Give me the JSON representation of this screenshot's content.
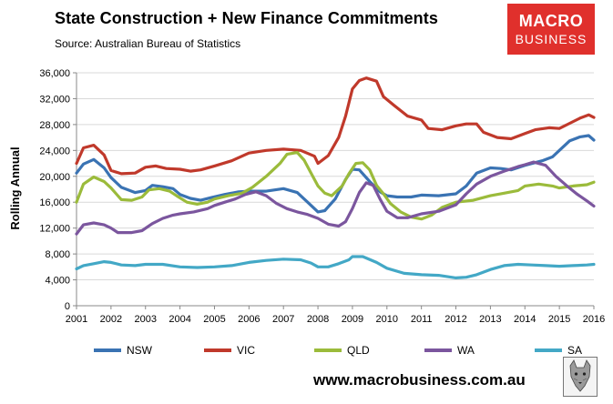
{
  "title": "State Construction + New Finance Commitments",
  "source": "Source: Australian Bureau of Statistics",
  "logo": {
    "line1": "MACRO",
    "line2": "BUSINESS",
    "color": "#e0302c"
  },
  "footer_url": "www.macrobusiness.com.au",
  "chart_data": {
    "type": "line",
    "title": "State Construction + New Finance Commitments",
    "ylabel": "Rolling Annual",
    "xlabel": "",
    "xlim": [
      2001,
      2016
    ],
    "ylim": [
      0,
      36000
    ],
    "yticks": [
      0,
      4000,
      8000,
      12000,
      16000,
      20000,
      24000,
      28000,
      32000,
      36000
    ],
    "yticklabels": [
      "0",
      "4,000",
      "8,000",
      "12,000",
      "16,000",
      "20,000",
      "24,000",
      "28,000",
      "32,000",
      "36,000"
    ],
    "xticks": [
      2001,
      2002,
      2003,
      2004,
      2005,
      2006,
      2007,
      2008,
      2009,
      2010,
      2011,
      2012,
      2013,
      2014,
      2015,
      2016
    ],
    "grid": "horizontal",
    "legend_position": "bottom",
    "series": [
      {
        "name": "NSW",
        "color": "#3a73b3",
        "points": [
          [
            2001.0,
            20500
          ],
          [
            2001.2,
            21900
          ],
          [
            2001.5,
            22600
          ],
          [
            2001.8,
            21300
          ],
          [
            2002.0,
            19800
          ],
          [
            2002.3,
            18300
          ],
          [
            2002.7,
            17500
          ],
          [
            2003.0,
            17800
          ],
          [
            2003.2,
            18600
          ],
          [
            2003.5,
            18400
          ],
          [
            2003.8,
            18100
          ],
          [
            2004.0,
            17200
          ],
          [
            2004.3,
            16600
          ],
          [
            2004.6,
            16300
          ],
          [
            2004.9,
            16700
          ],
          [
            2005.3,
            17200
          ],
          [
            2005.7,
            17600
          ],
          [
            2006.0,
            17700
          ],
          [
            2006.5,
            17700
          ],
          [
            2007.0,
            18100
          ],
          [
            2007.4,
            17500
          ],
          [
            2007.7,
            16000
          ],
          [
            2008.0,
            14500
          ],
          [
            2008.2,
            14700
          ],
          [
            2008.5,
            16500
          ],
          [
            2008.8,
            19500
          ],
          [
            2009.0,
            21100
          ],
          [
            2009.2,
            21000
          ],
          [
            2009.5,
            19200
          ],
          [
            2009.8,
            17600
          ],
          [
            2010.0,
            17000
          ],
          [
            2010.3,
            16800
          ],
          [
            2010.7,
            16800
          ],
          [
            2011.0,
            17100
          ],
          [
            2011.5,
            17000
          ],
          [
            2012.0,
            17300
          ],
          [
            2012.3,
            18500
          ],
          [
            2012.6,
            20500
          ],
          [
            2013.0,
            21300
          ],
          [
            2013.3,
            21200
          ],
          [
            2013.6,
            21000
          ],
          [
            2014.0,
            21700
          ],
          [
            2014.5,
            22400
          ],
          [
            2014.8,
            23000
          ],
          [
            2015.0,
            24000
          ],
          [
            2015.3,
            25500
          ],
          [
            2015.6,
            26100
          ],
          [
            2015.85,
            26300
          ],
          [
            2016.0,
            25600
          ]
        ]
      },
      {
        "name": "VIC",
        "color": "#c0392b",
        "points": [
          [
            2001.0,
            22000
          ],
          [
            2001.2,
            24400
          ],
          [
            2001.5,
            24800
          ],
          [
            2001.8,
            23300
          ],
          [
            2002.0,
            20900
          ],
          [
            2002.3,
            20400
          ],
          [
            2002.7,
            20500
          ],
          [
            2003.0,
            21400
          ],
          [
            2003.3,
            21600
          ],
          [
            2003.6,
            21200
          ],
          [
            2004.0,
            21100
          ],
          [
            2004.3,
            20800
          ],
          [
            2004.6,
            21000
          ],
          [
            2005.0,
            21600
          ],
          [
            2005.5,
            22400
          ],
          [
            2006.0,
            23600
          ],
          [
            2006.5,
            24000
          ],
          [
            2007.0,
            24200
          ],
          [
            2007.5,
            24000
          ],
          [
            2007.9,
            23100
          ],
          [
            2008.0,
            22000
          ],
          [
            2008.3,
            23200
          ],
          [
            2008.6,
            26000
          ],
          [
            2008.8,
            29300
          ],
          [
            2009.0,
            33500
          ],
          [
            2009.2,
            34800
          ],
          [
            2009.4,
            35200
          ],
          [
            2009.7,
            34700
          ],
          [
            2009.9,
            32300
          ],
          [
            2010.2,
            31000
          ],
          [
            2010.6,
            29300
          ],
          [
            2011.0,
            28700
          ],
          [
            2011.2,
            27400
          ],
          [
            2011.6,
            27200
          ],
          [
            2012.0,
            27800
          ],
          [
            2012.3,
            28100
          ],
          [
            2012.6,
            28100
          ],
          [
            2012.8,
            26800
          ],
          [
            2013.2,
            26000
          ],
          [
            2013.6,
            25800
          ],
          [
            2014.0,
            26600
          ],
          [
            2014.3,
            27200
          ],
          [
            2014.7,
            27500
          ],
          [
            2015.0,
            27400
          ],
          [
            2015.3,
            28200
          ],
          [
            2015.6,
            29000
          ],
          [
            2015.85,
            29500
          ],
          [
            2016.0,
            29100
          ]
        ]
      },
      {
        "name": "QLD",
        "color": "#9bbb3b",
        "points": [
          [
            2001.0,
            16000
          ],
          [
            2001.2,
            18800
          ],
          [
            2001.5,
            19900
          ],
          [
            2001.8,
            19200
          ],
          [
            2002.0,
            18200
          ],
          [
            2002.3,
            16400
          ],
          [
            2002.6,
            16300
          ],
          [
            2002.9,
            16800
          ],
          [
            2003.1,
            17900
          ],
          [
            2003.4,
            18100
          ],
          [
            2003.7,
            17700
          ],
          [
            2003.9,
            17000
          ],
          [
            2004.2,
            16000
          ],
          [
            2004.5,
            15700
          ],
          [
            2004.8,
            16000
          ],
          [
            2005.0,
            16500
          ],
          [
            2005.4,
            17000
          ],
          [
            2005.8,
            17400
          ],
          [
            2006.1,
            18300
          ],
          [
            2006.5,
            20000
          ],
          [
            2006.9,
            22000
          ],
          [
            2007.1,
            23400
          ],
          [
            2007.4,
            23700
          ],
          [
            2007.6,
            22500
          ],
          [
            2007.8,
            20500
          ],
          [
            2008.0,
            18500
          ],
          [
            2008.2,
            17400
          ],
          [
            2008.4,
            17000
          ],
          [
            2008.7,
            18500
          ],
          [
            2008.9,
            20400
          ],
          [
            2009.1,
            22000
          ],
          [
            2009.3,
            22100
          ],
          [
            2009.5,
            21000
          ],
          [
            2009.7,
            18600
          ],
          [
            2009.9,
            17300
          ],
          [
            2010.1,
            15800
          ],
          [
            2010.4,
            14500
          ],
          [
            2010.7,
            13700
          ],
          [
            2011.0,
            13400
          ],
          [
            2011.3,
            14000
          ],
          [
            2011.6,
            15200
          ],
          [
            2012.0,
            16000
          ],
          [
            2012.5,
            16300
          ],
          [
            2013.0,
            17000
          ],
          [
            2013.4,
            17400
          ],
          [
            2013.8,
            17800
          ],
          [
            2014.0,
            18500
          ],
          [
            2014.4,
            18800
          ],
          [
            2014.8,
            18500
          ],
          [
            2015.0,
            18200
          ],
          [
            2015.4,
            18500
          ],
          [
            2015.8,
            18700
          ],
          [
            2016.0,
            19100
          ]
        ]
      },
      {
        "name": "WA",
        "color": "#7b569e",
        "points": [
          [
            2001.0,
            11100
          ],
          [
            2001.2,
            12500
          ],
          [
            2001.5,
            12800
          ],
          [
            2001.8,
            12500
          ],
          [
            2002.0,
            12000
          ],
          [
            2002.2,
            11300
          ],
          [
            2002.6,
            11300
          ],
          [
            2002.9,
            11600
          ],
          [
            2003.2,
            12700
          ],
          [
            2003.5,
            13500
          ],
          [
            2003.8,
            14000
          ],
          [
            2004.0,
            14200
          ],
          [
            2004.4,
            14500
          ],
          [
            2004.8,
            15000
          ],
          [
            2005.0,
            15500
          ],
          [
            2005.3,
            16000
          ],
          [
            2005.6,
            16500
          ],
          [
            2005.9,
            17200
          ],
          [
            2006.2,
            17600
          ],
          [
            2006.5,
            17000
          ],
          [
            2006.8,
            15800
          ],
          [
            2007.1,
            15000
          ],
          [
            2007.4,
            14500
          ],
          [
            2007.7,
            14100
          ],
          [
            2008.0,
            13500
          ],
          [
            2008.3,
            12600
          ],
          [
            2008.6,
            12300
          ],
          [
            2008.8,
            13000
          ],
          [
            2009.0,
            15000
          ],
          [
            2009.2,
            17500
          ],
          [
            2009.4,
            19000
          ],
          [
            2009.6,
            18600
          ],
          [
            2009.8,
            16500
          ],
          [
            2010.0,
            14600
          ],
          [
            2010.3,
            13600
          ],
          [
            2010.6,
            13600
          ],
          [
            2011.0,
            14200
          ],
          [
            2011.5,
            14600
          ],
          [
            2012.0,
            15600
          ],
          [
            2012.3,
            17300
          ],
          [
            2012.6,
            18800
          ],
          [
            2013.0,
            20000
          ],
          [
            2013.4,
            20800
          ],
          [
            2013.8,
            21500
          ],
          [
            2014.0,
            21800
          ],
          [
            2014.25,
            22200
          ],
          [
            2014.6,
            21700
          ],
          [
            2014.9,
            20000
          ],
          [
            2015.2,
            18600
          ],
          [
            2015.5,
            17300
          ],
          [
            2015.8,
            16200
          ],
          [
            2016.0,
            15400
          ]
        ]
      },
      {
        "name": "SA",
        "color": "#43a8c6",
        "points": [
          [
            2001.0,
            5700
          ],
          [
            2001.2,
            6200
          ],
          [
            2001.5,
            6500
          ],
          [
            2001.8,
            6800
          ],
          [
            2002.0,
            6700
          ],
          [
            2002.3,
            6300
          ],
          [
            2002.7,
            6200
          ],
          [
            2003.0,
            6400
          ],
          [
            2003.5,
            6400
          ],
          [
            2004.0,
            6000
          ],
          [
            2004.5,
            5900
          ],
          [
            2005.0,
            6000
          ],
          [
            2005.5,
            6200
          ],
          [
            2006.0,
            6700
          ],
          [
            2006.5,
            7000
          ],
          [
            2007.0,
            7200
          ],
          [
            2007.5,
            7100
          ],
          [
            2007.8,
            6600
          ],
          [
            2008.0,
            6000
          ],
          [
            2008.3,
            6000
          ],
          [
            2008.6,
            6500
          ],
          [
            2008.9,
            7100
          ],
          [
            2009.0,
            7600
          ],
          [
            2009.3,
            7600
          ],
          [
            2009.7,
            6700
          ],
          [
            2010.0,
            5800
          ],
          [
            2010.5,
            5000
          ],
          [
            2011.0,
            4800
          ],
          [
            2011.5,
            4700
          ],
          [
            2012.0,
            4300
          ],
          [
            2012.3,
            4400
          ],
          [
            2012.6,
            4800
          ],
          [
            2013.0,
            5600
          ],
          [
            2013.4,
            6200
          ],
          [
            2013.8,
            6400
          ],
          [
            2014.2,
            6300
          ],
          [
            2014.6,
            6200
          ],
          [
            2015.0,
            6100
          ],
          [
            2015.4,
            6200
          ],
          [
            2015.8,
            6300
          ],
          [
            2016.0,
            6400
          ]
        ]
      }
    ]
  }
}
